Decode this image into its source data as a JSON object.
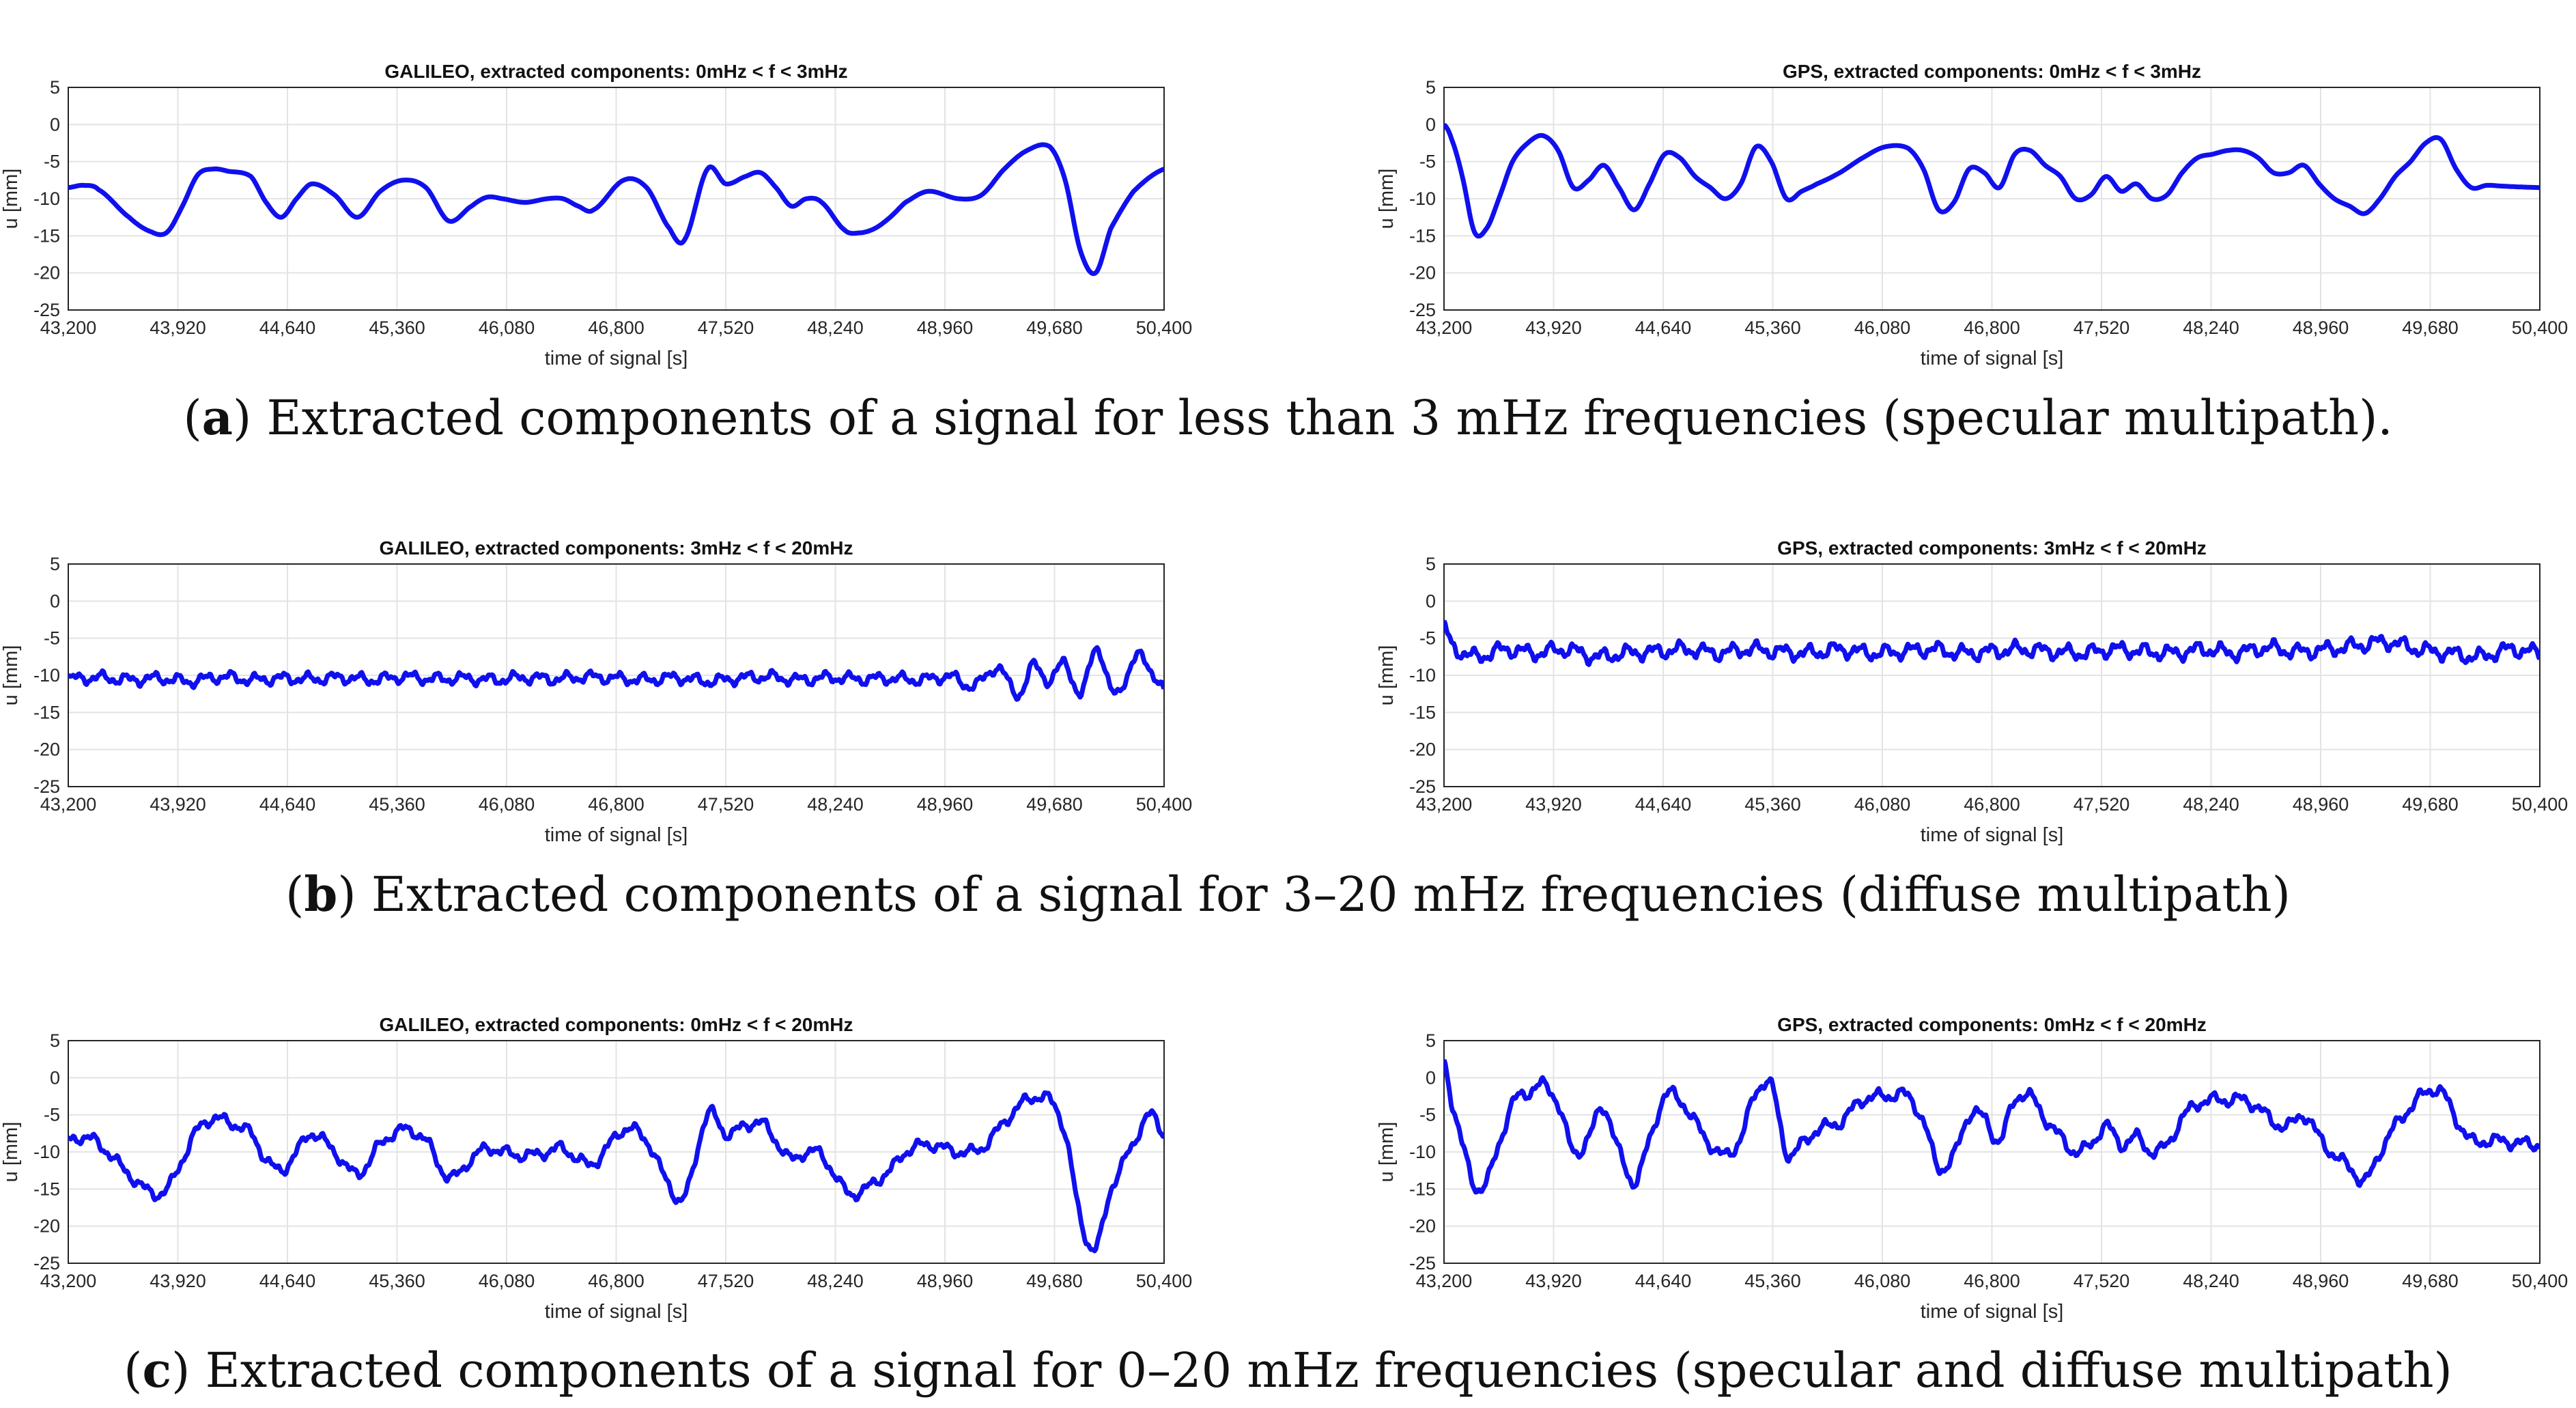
{
  "figure": {
    "rows": [
      {
        "caption": {
          "letter": "a",
          "text": ") Extracted components of a signal for less than 3 mHz frequencies (specular multipath).",
          "open": "("
        }
      },
      {
        "caption": {
          "letter": "b",
          "text": ") Extracted components of a signal for 3–20 mHz frequencies (diffuse multipath)",
          "open": "("
        }
      },
      {
        "caption": {
          "letter": "c",
          "text": ") Extracted components of a signal for 0–20 mHz frequencies (specular and diffuse multipath)",
          "open": "("
        }
      }
    ]
  },
  "chart_data": [
    {
      "type": "line",
      "title": "GALILEO, extracted components: 0mHz < f < 3mHz",
      "xlabel": "time of signal [s]",
      "ylabel": "u [mm]",
      "xlim": [
        43200,
        50400
      ],
      "ylim": [
        -25,
        5
      ],
      "xticks": [
        "43,200",
        "43,920",
        "44,640",
        "45,360",
        "46,080",
        "46,800",
        "47,520",
        "48,240",
        "48,960",
        "49,680",
        "50,400"
      ],
      "yticks": [
        "5",
        "0",
        "-5",
        "-10",
        "-15",
        "-20",
        "-25"
      ],
      "grid": true,
      "line_color": "#1010ee",
      "noise": 0,
      "series": [
        {
          "x": [
            43200,
            43300,
            43400,
            43600,
            43750,
            43850,
            43950,
            44050,
            44150,
            44250,
            44400,
            44500,
            44600,
            44700,
            44800,
            44950,
            45100,
            45250,
            45400,
            45550,
            45700,
            45850,
            45950,
            46050,
            46200,
            46350,
            46450,
            46550,
            46650,
            46850,
            47000,
            47150,
            47250,
            47400,
            47520,
            47650,
            47750,
            47850,
            47950,
            48050,
            48150,
            48300,
            48400,
            48500,
            48600,
            48700,
            48850,
            49050,
            49200,
            49350,
            49500,
            49650,
            49750,
            49850,
            49950,
            50050,
            50200,
            50400
          ],
          "y": [
            -8.5,
            -8.2,
            -8.8,
            -12.5,
            -14.5,
            -14.5,
            -11,
            -6.8,
            -6,
            -6.3,
            -7,
            -10.5,
            -12.5,
            -10,
            -8,
            -9.5,
            -12.5,
            -9,
            -7.5,
            -8.5,
            -13,
            -11,
            -9.8,
            -10,
            -10.5,
            -10,
            -10,
            -11,
            -11.5,
            -7.5,
            -8.5,
            -14,
            -15.5,
            -6,
            -8,
            -7,
            -6.5,
            -8.5,
            -11,
            -10,
            -10.5,
            -14.2,
            -14.6,
            -14,
            -12.5,
            -10.5,
            -9,
            -10,
            -9.5,
            -6,
            -3.5,
            -3,
            -7.5,
            -17,
            -20,
            -14,
            -9,
            -6
          ]
        }
      ]
    },
    {
      "type": "line",
      "title": "GPS, extracted components: 0mHz < f < 3mHz",
      "xlabel": "time of signal [s]",
      "ylabel": "u [mm]",
      "xlim": [
        43200,
        50400
      ],
      "ylim": [
        -25,
        5
      ],
      "xticks": [
        "43,200",
        "43,920",
        "44,640",
        "45,360",
        "46,080",
        "46,800",
        "47,520",
        "48,240",
        "48,960",
        "49,680",
        "50,400"
      ],
      "yticks": [
        "5",
        "0",
        "-5",
        "-10",
        "-15",
        "-20",
        "-25"
      ],
      "grid": true,
      "line_color": "#1010ee",
      "noise": 0,
      "series": [
        {
          "x": [
            43200,
            43250,
            43320,
            43400,
            43480,
            43560,
            43650,
            43750,
            43850,
            43950,
            44050,
            44150,
            44250,
            44350,
            44450,
            44550,
            44650,
            44750,
            44850,
            44950,
            45050,
            45150,
            45250,
            45350,
            45450,
            45550,
            45650,
            45800,
            45950,
            46100,
            46250,
            46350,
            46450,
            46550,
            46650,
            46750,
            46850,
            46950,
            47050,
            47150,
            47250,
            47350,
            47450,
            47550,
            47650,
            47750,
            47850,
            47950,
            48050,
            48150,
            48250,
            48350,
            48450,
            48550,
            48650,
            48750,
            48850,
            48950,
            49050,
            49150,
            49250,
            49350,
            49450,
            49550,
            49650,
            49750,
            49850,
            49950,
            50050,
            50150,
            50250,
            50400
          ],
          "y": [
            0,
            -2,
            -7,
            -14.5,
            -14,
            -10,
            -5,
            -2.5,
            -1.5,
            -3.5,
            -8.5,
            -7.5,
            -5.5,
            -8.5,
            -11.5,
            -8,
            -4,
            -4.5,
            -7,
            -8.5,
            -10,
            -8,
            -3,
            -5,
            -10,
            -9,
            -8,
            -6.5,
            -4.5,
            -3,
            -3.2,
            -6,
            -11.5,
            -10.5,
            -6,
            -6.5,
            -8.5,
            -4,
            -3.5,
            -5.5,
            -7,
            -10,
            -9.5,
            -7,
            -9,
            -8,
            -10,
            -9.5,
            -6.5,
            -4.5,
            -4,
            -3.5,
            -3.5,
            -4.5,
            -6.5,
            -6.5,
            -5.5,
            -8,
            -10,
            -11,
            -12,
            -10,
            -7,
            -5,
            -2.5,
            -2,
            -6,
            -8.5,
            -8.2,
            -8.3,
            -8.4,
            -8.5
          ]
        }
      ]
    },
    {
      "type": "line",
      "title": "GALILEO, extracted components: 3mHz < f < 20mHz",
      "xlabel": "time of signal [s]",
      "ylabel": "u [mm]",
      "xlim": [
        43200,
        50400
      ],
      "ylim": [
        -25,
        5
      ],
      "xticks": [
        "43,200",
        "43,920",
        "44,640",
        "45,360",
        "46,080",
        "46,800",
        "47,520",
        "48,240",
        "48,960",
        "49,680",
        "50,400"
      ],
      "yticks": [
        "5",
        "0",
        "-5",
        "-10",
        "-15",
        "-20",
        "-25"
      ],
      "grid": true,
      "line_color": "#1010ee",
      "noise": 1,
      "series": [
        {
          "x": [
            43200,
            43400,
            43600,
            43800,
            44000,
            44200,
            44400,
            44600,
            44800,
            45000,
            45200,
            45400,
            45600,
            45800,
            46000,
            46200,
            46400,
            46600,
            46800,
            47000,
            47200,
            47400,
            47600,
            47800,
            48000,
            48200,
            48400,
            48600,
            48800,
            49000,
            49150,
            49300,
            49450,
            49550,
            49650,
            49750,
            49850,
            49950,
            50050,
            50150,
            50250,
            50350,
            50400
          ],
          "y": [
            -10.5,
            -10.3,
            -10.6,
            -10.4,
            -10.8,
            -10.2,
            -10.6,
            -10.4,
            -10.5,
            -10.3,
            -10.6,
            -10.2,
            -10.5,
            -10.4,
            -10.6,
            -10.3,
            -10.5,
            -10.2,
            -10.4,
            -10.6,
            -10.3,
            -10.8,
            -10.4,
            -10.2,
            -10.6,
            -10.3,
            -10.5,
            -10.4,
            -10.6,
            -10.2,
            -11.5,
            -9,
            -12.5,
            -8.5,
            -11,
            -8,
            -13,
            -6,
            -12,
            -10.5,
            -7,
            -11,
            -12
          ]
        }
      ]
    },
    {
      "type": "line",
      "title": "GPS, extracted components: 3mHz < f < 20mHz",
      "xlabel": "time of signal [s]",
      "ylabel": "u [mm]",
      "xlim": [
        43200,
        50400
      ],
      "ylim": [
        -25,
        5
      ],
      "xticks": [
        "43,200",
        "43,920",
        "44,640",
        "45,360",
        "46,080",
        "46,800",
        "47,520",
        "48,240",
        "48,960",
        "49,680",
        "50,400"
      ],
      "yticks": [
        "5",
        "0",
        "-5",
        "-10",
        "-15",
        "-20",
        "-25"
      ],
      "grid": true,
      "line_color": "#1010ee",
      "noise": 1.3,
      "series": [
        {
          "x": [
            43200,
            43250,
            43400,
            43600,
            43800,
            44000,
            44200,
            44400,
            44600,
            44800,
            45000,
            45200,
            45400,
            45600,
            45800,
            46000,
            46200,
            46400,
            46600,
            46800,
            47000,
            47200,
            47400,
            47600,
            47800,
            48000,
            48200,
            48400,
            48600,
            48800,
            49000,
            49200,
            49400,
            49600,
            49800,
            50000,
            50200,
            50400
          ],
          "y": [
            -3.5,
            -6,
            -7.5,
            -6.5,
            -7,
            -6.5,
            -7.5,
            -7,
            -6.8,
            -6.5,
            -7,
            -6.5,
            -6.8,
            -7,
            -6.5,
            -7,
            -6.8,
            -6.5,
            -7,
            -6.8,
            -6.5,
            -6.8,
            -7,
            -6.5,
            -6.8,
            -7,
            -6.5,
            -7,
            -6.3,
            -6.8,
            -6.5,
            -6,
            -5.5,
            -6.5,
            -7,
            -7.5,
            -6.5,
            -7
          ]
        }
      ]
    },
    {
      "type": "line",
      "title": "GALILEO, extracted components: 0mHz < f < 20mHz",
      "xlabel": "time of signal [s]",
      "ylabel": "u [mm]",
      "xlim": [
        43200,
        50400
      ],
      "ylim": [
        -25,
        5
      ],
      "xticks": [
        "43,200",
        "43,920",
        "44,640",
        "45,360",
        "46,080",
        "46,800",
        "47,520",
        "48,240",
        "48,960",
        "49,680",
        "50,400"
      ],
      "yticks": [
        "5",
        "0",
        "-5",
        "-10",
        "-15",
        "-20",
        "-25"
      ],
      "grid": true,
      "line_color": "#1010ee",
      "noise": 1,
      "series": [
        {
          "x": [
            43200,
            43300,
            43400,
            43600,
            43750,
            43850,
            43950,
            44050,
            44150,
            44250,
            44400,
            44500,
            44600,
            44700,
            44800,
            44950,
            45100,
            45250,
            45400,
            45550,
            45700,
            45850,
            45950,
            46050,
            46200,
            46350,
            46450,
            46550,
            46650,
            46850,
            47000,
            47150,
            47250,
            47400,
            47520,
            47650,
            47750,
            47850,
            47950,
            48050,
            48150,
            48300,
            48400,
            48500,
            48600,
            48700,
            48850,
            49050,
            49200,
            49350,
            49500,
            49650,
            49750,
            49850,
            49950,
            50050,
            50200,
            50300,
            50400
          ],
          "y": [
            -8.5,
            -8,
            -9,
            -13,
            -15.5,
            -15,
            -11,
            -7,
            -5.5,
            -6,
            -7.5,
            -11,
            -12.5,
            -10,
            -7.5,
            -10,
            -13,
            -9,
            -7,
            -8.5,
            -13.5,
            -11,
            -9.5,
            -10,
            -10.5,
            -10,
            -9.5,
            -11,
            -11.5,
            -7,
            -8.5,
            -14.5,
            -16,
            -5,
            -7.5,
            -6.5,
            -6,
            -8.5,
            -11,
            -10,
            -10.5,
            -15,
            -15.5,
            -14,
            -12.5,
            -10,
            -9,
            -10,
            -9.5,
            -6,
            -3,
            -3,
            -7.5,
            -19,
            -23,
            -15,
            -9,
            -5,
            -7.5
          ]
        }
      ]
    },
    {
      "type": "line",
      "title": "GPS, extracted components: 0mHz < f < 20mHz",
      "xlabel": "time of signal [s]",
      "ylabel": "u [mm]",
      "xlim": [
        43200,
        50400
      ],
      "ylim": [
        -25,
        5
      ],
      "xticks": [
        "43,200",
        "43,920",
        "44,640",
        "45,360",
        "46,080",
        "46,800",
        "47,520",
        "48,240",
        "48,960",
        "49,680",
        "50,400"
      ],
      "yticks": [
        "5",
        "0",
        "-5",
        "-10",
        "-15",
        "-20",
        "-25"
      ],
      "grid": true,
      "line_color": "#1010ee",
      "noise": 1.1,
      "series": [
        {
          "x": [
            43200,
            43250,
            43320,
            43400,
            43480,
            43560,
            43650,
            43750,
            43850,
            43950,
            44050,
            44150,
            44250,
            44350,
            44450,
            44550,
            44650,
            44750,
            44850,
            44950,
            45050,
            45150,
            45250,
            45350,
            45450,
            45550,
            45650,
            45800,
            45950,
            46100,
            46250,
            46350,
            46450,
            46550,
            46650,
            46750,
            46850,
            46950,
            47050,
            47150,
            47250,
            47350,
            47450,
            47550,
            47650,
            47750,
            47850,
            47950,
            48050,
            48150,
            48250,
            48350,
            48450,
            48550,
            48650,
            48750,
            48850,
            48950,
            49050,
            49150,
            49250,
            49350,
            49450,
            49550,
            49650,
            49750,
            49850,
            49950,
            50050,
            50150,
            50250,
            50400
          ],
          "y": [
            2,
            -3,
            -9,
            -14.5,
            -14,
            -9,
            -3.5,
            -2,
            -1,
            -3.5,
            -10,
            -8,
            -4,
            -10,
            -14,
            -8.5,
            -2.5,
            -3,
            -6,
            -9,
            -10.5,
            -8,
            -2,
            -1,
            -10,
            -9,
            -7,
            -6,
            -3,
            -2.5,
            -2.5,
            -6,
            -12,
            -10.5,
            -5,
            -5.5,
            -8.5,
            -3,
            -2.5,
            -5.5,
            -8,
            -10,
            -9,
            -6.5,
            -9,
            -8,
            -10,
            -9,
            -5.5,
            -3.5,
            -3,
            -3,
            -3,
            -4,
            -6,
            -6.5,
            -5,
            -8,
            -10.5,
            -12,
            -14,
            -10,
            -6.5,
            -4,
            -2,
            -1.8,
            -5.5,
            -8.5,
            -8.5,
            -8.5,
            -8.8,
            -9
          ]
        }
      ]
    }
  ]
}
